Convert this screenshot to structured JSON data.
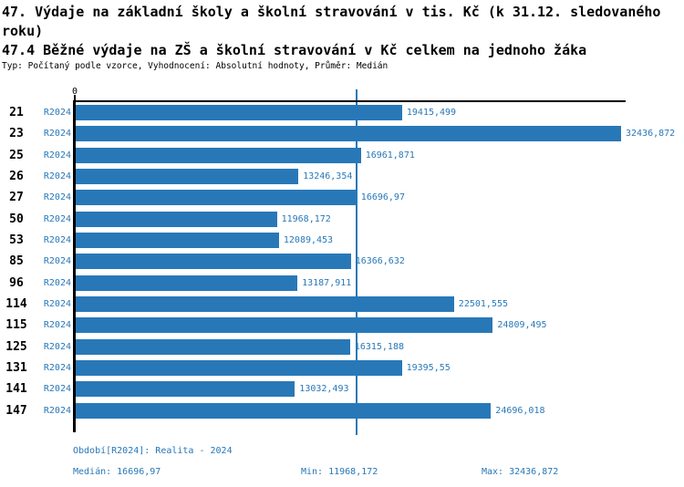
{
  "header": {
    "title_line1": "47. Výdaje na základní školy a školní stravování v tis. Kč (k 31.12. sledovaného",
    "title_line2": "roku)",
    "subtitle": "47.4 Běžné výdaje na ZŠ a školní stravování v Kč celkem na jednoho žáka",
    "meta": "Typ: Počítaný podle vzorce, Vyhodnocení: Absolutní hodnoty, Průměr: Medián"
  },
  "axis": {
    "zero_label": "0"
  },
  "chart_data": {
    "type": "bar",
    "orientation": "horizontal",
    "title": "47.4 Běžné výdaje na ZŠ a školní stravování v Kč celkem na jednoho žáka",
    "series_label": "R2024",
    "categories": [
      "21",
      "23",
      "25",
      "26",
      "27",
      "50",
      "53",
      "85",
      "96",
      "114",
      "115",
      "125",
      "131",
      "141",
      "147"
    ],
    "values": [
      19415.499,
      32436.872,
      16961.871,
      13246.354,
      16696.97,
      11968.172,
      12089.453,
      16366.632,
      13187.911,
      22501.555,
      24809.495,
      16315.188,
      19395.55,
      13032.493,
      24696.018
    ],
    "value_labels": [
      "19415,499",
      "32436,872",
      "16961,871",
      "13246,354",
      "16696,97",
      "11968,172",
      "12089,453",
      "16366,632",
      "13187,911",
      "22501,555",
      "24809,495",
      "16315,188",
      "19395,55",
      "13032,493",
      "24696,018"
    ],
    "xlim": [
      0,
      32436.872
    ],
    "median": 16696.97,
    "min": 11968.172,
    "max": 32436.872,
    "bar_color": "#2878b8",
    "grid": false,
    "legend_position": "none"
  },
  "footer": {
    "period": "Období[R2024]: Realita - 2024",
    "median": "Medián: 16696,97",
    "min": "Min: 11968,172",
    "max": "Max: 32436,872"
  }
}
